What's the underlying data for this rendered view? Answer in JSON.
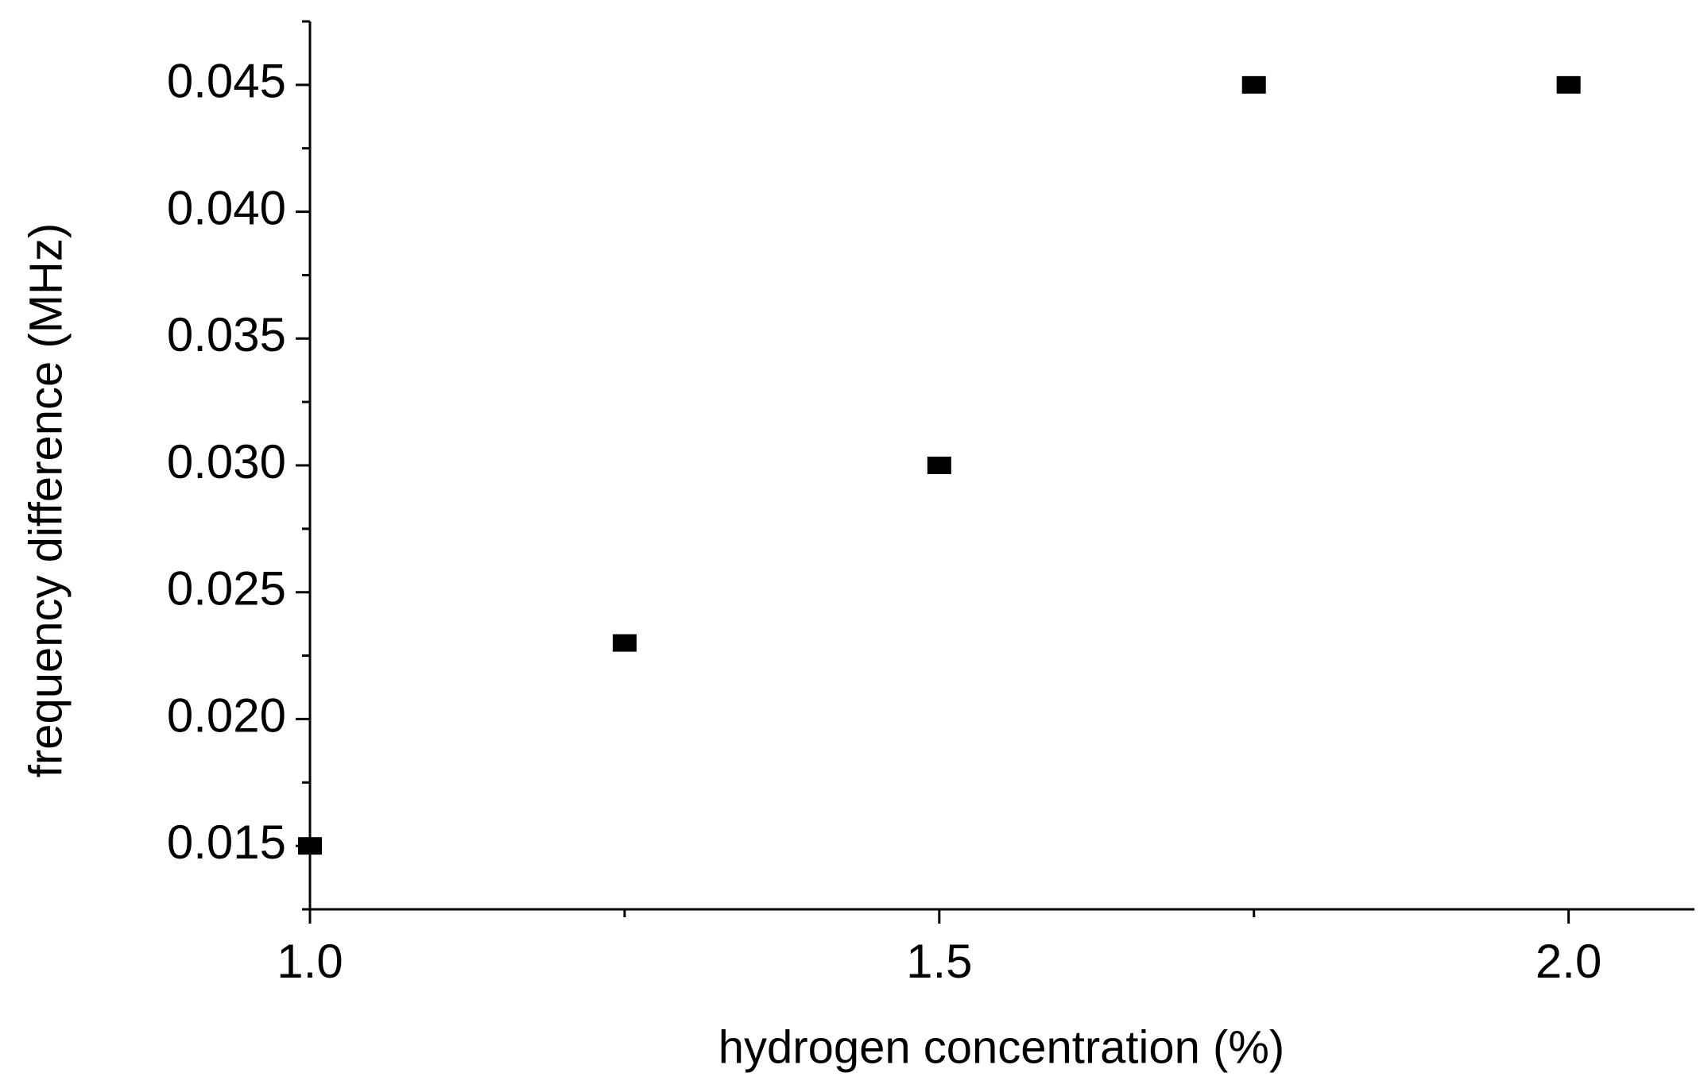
{
  "chart_data": {
    "type": "scatter",
    "x_label": "hydrogen concentration (%)",
    "y_label": "frequency difference (MHz)",
    "series": [
      {
        "color": "#000000",
        "x": [
          1.0,
          1.25,
          1.5,
          1.75,
          2.0
        ],
        "values": [
          0.015,
          0.023,
          0.03,
          0.045,
          0.045
        ]
      }
    ],
    "xlim": [
      1.0,
      2.1
    ],
    "ylim": [
      0.0125,
      0.0475
    ],
    "xticks": [
      {
        "value": 1.0,
        "label": "1.0"
      },
      {
        "value": 1.5,
        "label": "1.5"
      },
      {
        "value": 2.0,
        "label": "2.0"
      }
    ],
    "xminorticks": [
      1.25,
      1.75
    ],
    "yticks": [
      0.015,
      {
        "value": 0.02,
        "label": "0.020"
      },
      0.025,
      {
        "value": 0.03,
        "label": "0.030"
      },
      0.035,
      {
        "value": 0.04,
        "label": "0.040"
      },
      0.045
    ],
    "yminorticks": [
      0.0125,
      0.0175,
      0.0225,
      0.0275,
      0.0325,
      0.0375,
      0.0425,
      0.0475
    ],
    "grid": false
  }
}
